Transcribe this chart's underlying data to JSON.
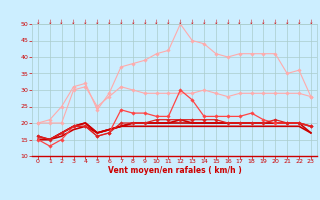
{
  "x": [
    0,
    1,
    2,
    3,
    4,
    5,
    6,
    7,
    8,
    9,
    10,
    11,
    12,
    13,
    14,
    15,
    16,
    17,
    18,
    19,
    20,
    21,
    22,
    23
  ],
  "background_color": "#cceeff",
  "grid_color": "#aacccc",
  "xlabel": "Vent moyen/en rafales ( km/h )",
  "xlabel_color": "#cc0000",
  "tick_color": "#cc0000",
  "ylim": [
    10,
    50
  ],
  "yticks": [
    10,
    15,
    20,
    25,
    30,
    35,
    40,
    45,
    50
  ],
  "lines": [
    {
      "y": [
        20,
        20,
        20,
        30,
        31,
        25,
        28,
        31,
        30,
        29,
        29,
        29,
        29,
        29,
        30,
        29,
        28,
        29,
        29,
        29,
        29,
        29,
        29,
        28
      ],
      "color": "#ffaaaa",
      "lw": 0.8,
      "marker": "D",
      "ms": 1.8,
      "zorder": 2
    },
    {
      "y": [
        20,
        21,
        25,
        31,
        32,
        24,
        29,
        37,
        38,
        39,
        41,
        42,
        50,
        45,
        44,
        41,
        40,
        41,
        41,
        41,
        41,
        35,
        36,
        28
      ],
      "color": "#ffaaaa",
      "lw": 0.8,
      "marker": "D",
      "ms": 1.8,
      "zorder": 2
    },
    {
      "y": [
        15,
        13,
        15,
        19,
        19,
        16,
        17,
        24,
        23,
        23,
        22,
        22,
        30,
        27,
        22,
        22,
        22,
        22,
        23,
        21,
        20,
        20,
        20,
        19
      ],
      "color": "#ff4444",
      "lw": 0.9,
      "marker": "D",
      "ms": 1.8,
      "zorder": 3
    },
    {
      "y": [
        15,
        15,
        17,
        19,
        20,
        17,
        18,
        19,
        20,
        20,
        20,
        20,
        20,
        20,
        20,
        20,
        20,
        20,
        20,
        20,
        20,
        20,
        20,
        19
      ],
      "color": "#cc0000",
      "lw": 1.2,
      "marker": null,
      "ms": 0,
      "zorder": 2
    },
    {
      "y": [
        15,
        15,
        17,
        19,
        20,
        17,
        18,
        19,
        20,
        20,
        20,
        20,
        21,
        20,
        20,
        20,
        20,
        20,
        20,
        20,
        20,
        20,
        20,
        17
      ],
      "color": "#cc0000",
      "lw": 1.2,
      "marker": null,
      "ms": 0,
      "zorder": 2
    },
    {
      "y": [
        16,
        15,
        16,
        18,
        19,
        17,
        18,
        19,
        19,
        19,
        19,
        19,
        19,
        19,
        19,
        19,
        19,
        19,
        19,
        19,
        19,
        19,
        19,
        17
      ],
      "color": "#cc0000",
      "lw": 1.2,
      "marker": null,
      "ms": 0,
      "zorder": 2
    },
    {
      "y": [
        16,
        15,
        17,
        19,
        19,
        16,
        17,
        20,
        20,
        20,
        21,
        21,
        21,
        21,
        21,
        21,
        20,
        20,
        20,
        20,
        21,
        20,
        20,
        19
      ],
      "color": "#dd2222",
      "lw": 0.9,
      "marker": "D",
      "ms": 1.8,
      "zorder": 3
    }
  ]
}
